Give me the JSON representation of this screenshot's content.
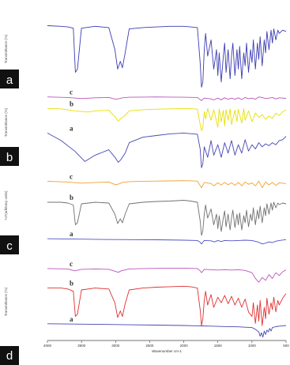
{
  "chart_data": [
    {
      "type": "line",
      "panel_label": "a",
      "ylabel": "Transmittance (%)",
      "x_axis": "reversed",
      "traces": [
        {
          "label": "",
          "color": "#3c3cb4",
          "x": [
            4000,
            3800,
            3700,
            3620,
            3590,
            3560,
            3500,
            3300,
            3100,
            3010,
            2970,
            2930,
            2900,
            2860,
            2800,
            2600,
            2400,
            2200,
            2000,
            1900,
            1800,
            1760,
            1740,
            1720,
            1700,
            1680,
            1650,
            1600,
            1560,
            1520,
            1500,
            1480,
            1450,
            1420,
            1400,
            1380,
            1350,
            1320,
            1300,
            1280,
            1250,
            1220,
            1200,
            1180,
            1150,
            1120,
            1100,
            1080,
            1050,
            1020,
            1000,
            980,
            950,
            920,
            900,
            880,
            850,
            820,
            800,
            780,
            750,
            720,
            700,
            680,
            650,
            620,
            600,
            550,
            500
          ],
          "y": [
            97,
            96,
            95,
            93,
            25,
            30,
            93,
            96,
            94,
            60,
            30,
            42,
            32,
            55,
            92,
            94,
            95,
            96,
            96,
            95,
            94,
            40,
            2,
            10,
            60,
            85,
            50,
            75,
            30,
            60,
            20,
            55,
            10,
            50,
            70,
            25,
            60,
            15,
            50,
            70,
            20,
            60,
            30,
            65,
            15,
            55,
            35,
            70,
            25,
            60,
            40,
            75,
            30,
            70,
            45,
            80,
            35,
            75,
            55,
            88,
            60,
            90,
            70,
            92,
            75,
            90,
            85,
            90,
            88
          ]
        }
      ]
    },
    {
      "type": "line",
      "panel_label": "b",
      "ylabel": "Transmittance (%)",
      "x_axis": "reversed",
      "traces": [
        {
          "label": "c",
          "color": "#bb55bb",
          "x": [
            4000,
            3700,
            3500,
            3300,
            3100,
            3000,
            2950,
            2900,
            2800,
            2600,
            2400,
            2200,
            2000,
            1800,
            1740,
            1720,
            1700,
            1600,
            1560,
            1500,
            1450,
            1400,
            1350,
            1300,
            1250,
            1200,
            1150,
            1100,
            1050,
            1000,
            950,
            900,
            850,
            800,
            750,
            700,
            650,
            600,
            500
          ],
          "y": [
            96,
            92,
            85,
            90,
            92,
            80,
            84,
            90,
            94,
            95,
            96,
            95,
            94,
            92,
            70,
            80,
            88,
            82,
            75,
            88,
            76,
            90,
            80,
            88,
            80,
            90,
            78,
            92,
            84,
            88,
            80,
            96,
            92,
            85,
            88,
            92,
            82,
            90,
            86
          ]
        },
        {
          "label": "b",
          "color": "#e8e000",
          "x": [
            4000,
            3800,
            3600,
            3400,
            3300,
            3100,
            3000,
            2960,
            2920,
            2860,
            2800,
            2600,
            2400,
            2200,
            2000,
            1900,
            1800,
            1760,
            1740,
            1720,
            1700,
            1680,
            1650,
            1600,
            1560,
            1500,
            1480,
            1450,
            1420,
            1400,
            1380,
            1350,
            1320,
            1300,
            1250,
            1220,
            1200,
            1150,
            1120,
            1100,
            1050,
            1000,
            950,
            900,
            850,
            800,
            750,
            700,
            650,
            600,
            550,
            500
          ],
          "y": [
            96,
            95,
            88,
            84,
            88,
            90,
            65,
            52,
            62,
            72,
            88,
            92,
            94,
            95,
            96,
            96,
            94,
            40,
            18,
            30,
            85,
            60,
            96,
            55,
            92,
            30,
            95,
            50,
            90,
            35,
            92,
            55,
            95,
            40,
            90,
            50,
            94,
            45,
            96,
            55,
            88,
            50,
            80,
            65,
            75,
            58,
            70,
            62,
            80,
            72,
            85,
            92
          ]
        },
        {
          "label": "a",
          "color": "#4646b4",
          "x": [
            4000,
            3800,
            3600,
            3450,
            3300,
            3100,
            3000,
            2960,
            2920,
            2860,
            2800,
            2600,
            2400,
            2200,
            2000,
            1800,
            1760,
            1740,
            1720,
            1700,
            1650,
            1600,
            1560,
            1500,
            1450,
            1400,
            1350,
            1300,
            1250,
            1200,
            1150,
            1100,
            1050,
            1000,
            950,
            900,
            850,
            800,
            750,
            700,
            650,
            600,
            550,
            500
          ],
          "y": [
            88,
            70,
            45,
            20,
            35,
            48,
            28,
            18,
            25,
            40,
            65,
            78,
            82,
            86,
            88,
            85,
            50,
            5,
            15,
            55,
            30,
            70,
            35,
            60,
            30,
            65,
            40,
            70,
            35,
            60,
            40,
            72,
            45,
            60,
            50,
            65,
            55,
            62,
            58,
            65,
            60,
            70,
            72,
            80
          ]
        }
      ]
    },
    {
      "type": "line",
      "panel_label": "c",
      "ylabel": "%T(arbitrary units)",
      "x_axis": "reversed",
      "traces": [
        {
          "label": "c",
          "color": "#f0a030",
          "x": [
            4000,
            3700,
            3500,
            3300,
            3100,
            3000,
            2950,
            2900,
            2800,
            2600,
            2400,
            2200,
            2000,
            1800,
            1740,
            1720,
            1700,
            1600,
            1560,
            1500,
            1450,
            1400,
            1350,
            1300,
            1250,
            1200,
            1150,
            1100,
            1050,
            1000,
            950,
            900,
            850,
            800,
            750,
            700,
            650,
            600,
            500
          ],
          "y": [
            94,
            90,
            84,
            88,
            90,
            76,
            80,
            88,
            92,
            94,
            95,
            96,
            97,
            95,
            60,
            72,
            88,
            82,
            70,
            86,
            74,
            88,
            76,
            86,
            72,
            88,
            70,
            90,
            78,
            86,
            70,
            95,
            60,
            90,
            75,
            88,
            72,
            86,
            82
          ]
        },
        {
          "label": "b",
          "color": "#707070",
          "x": [
            4000,
            3800,
            3700,
            3620,
            3590,
            3560,
            3500,
            3300,
            3100,
            3010,
            2970,
            2930,
            2900,
            2860,
            2800,
            2600,
            2400,
            2200,
            2000,
            1900,
            1800,
            1760,
            1740,
            1720,
            1700,
            1680,
            1650,
            1600,
            1560,
            1520,
            1500,
            1480,
            1450,
            1420,
            1400,
            1380,
            1350,
            1320,
            1300,
            1280,
            1250,
            1220,
            1200,
            1180,
            1150,
            1120,
            1100,
            1080,
            1050,
            1020,
            1000,
            980,
            950,
            920,
            900,
            880,
            850,
            820,
            800,
            780,
            750,
            720,
            700,
            680,
            650,
            620,
            600,
            550,
            500
          ],
          "y": [
            92,
            92,
            90,
            85,
            35,
            40,
            88,
            92,
            90,
            62,
            38,
            50,
            40,
            62,
            88,
            92,
            94,
            95,
            97,
            95,
            92,
            45,
            8,
            20,
            62,
            85,
            52,
            75,
            35,
            62,
            25,
            58,
            18,
            52,
            70,
            30,
            62,
            22,
            52,
            72,
            28,
            62,
            35,
            65,
            22,
            58,
            40,
            72,
            30,
            62,
            45,
            78,
            35,
            72,
            50,
            82,
            40,
            78,
            58,
            88,
            62,
            90,
            72,
            92,
            78,
            90,
            86,
            90,
            88
          ]
        },
        {
          "label": "a",
          "color": "#5050c8",
          "x": [
            4000,
            3600,
            3200,
            2800,
            2400,
            2000,
            1800,
            1760,
            1740,
            1720,
            1700,
            1600,
            1550,
            1500,
            1450,
            1400,
            1300,
            1200,
            1100,
            1000,
            900,
            850,
            800,
            750,
            700,
            650,
            600,
            500
          ],
          "y": [
            90,
            88,
            86,
            85,
            84,
            82,
            80,
            70,
            60,
            70,
            80,
            78,
            72,
            80,
            74,
            80,
            78,
            80,
            82,
            80,
            70,
            60,
            65,
            72,
            68,
            76,
            80,
            85
          ]
        }
      ]
    },
    {
      "type": "line",
      "panel_label": "d",
      "ylabel": "Transmittance (%)",
      "xlabel": "Wavenumber cm-1",
      "x_axis": "reversed",
      "xlim": [
        4000,
        500
      ],
      "xticks": [
        4000,
        3500,
        3000,
        2500,
        2000,
        1500,
        1000,
        500
      ],
      "traces": [
        {
          "label": "c",
          "color": "#bb55bb",
          "x": [
            4000,
            3700,
            3600,
            3500,
            3300,
            3100,
            3010,
            2960,
            2920,
            2800,
            2600,
            2400,
            2200,
            2000,
            1800,
            1760,
            1740,
            1720,
            1700,
            1600,
            1500,
            1400,
            1300,
            1200,
            1100,
            1000,
            950,
            900,
            850,
            800,
            750,
            700,
            650,
            600,
            550,
            500
          ],
          "y": [
            92,
            90,
            80,
            88,
            90,
            88,
            78,
            72,
            80,
            90,
            92,
            93,
            94,
            94,
            92,
            80,
            70,
            78,
            88,
            86,
            84,
            86,
            84,
            86,
            82,
            70,
            40,
            20,
            45,
            30,
            60,
            40,
            70,
            55,
            75,
            85
          ]
        },
        {
          "label": "b",
          "color": "#e03030",
          "x": [
            4000,
            3800,
            3700,
            3620,
            3590,
            3560,
            3500,
            3300,
            3100,
            3010,
            2970,
            2930,
            2900,
            2860,
            2800,
            2600,
            2400,
            2200,
            2000,
            1900,
            1800,
            1760,
            1740,
            1720,
            1700,
            1680,
            1650,
            1600,
            1560,
            1500,
            1450,
            1400,
            1350,
            1300,
            1250,
            1200,
            1150,
            1100,
            1050,
            1000,
            980,
            950,
            920,
            900,
            880,
            850,
            820,
            800,
            780,
            750,
            720,
            700,
            680,
            650,
            620,
            600,
            550,
            500
          ],
          "y": [
            92,
            92,
            90,
            85,
            30,
            35,
            88,
            92,
            90,
            60,
            28,
            42,
            30,
            58,
            88,
            92,
            94,
            95,
            96,
            95,
            92,
            45,
            10,
            25,
            65,
            85,
            55,
            78,
            50,
            72,
            60,
            76,
            58,
            74,
            55,
            70,
            50,
            68,
            40,
            30,
            60,
            15,
            55,
            20,
            65,
            10,
            50,
            25,
            70,
            35,
            60,
            45,
            72,
            40,
            65,
            55,
            70,
            80
          ]
        },
        {
          "label": "a",
          "color": "#4646b4",
          "x": [
            4000,
            3600,
            3200,
            2800,
            2400,
            2000,
            1800,
            1600,
            1400,
            1200,
            1100,
            1000,
            950,
            900,
            880,
            860,
            840,
            820,
            800,
            780,
            760,
            740,
            720,
            700,
            650,
            600,
            550,
            500
          ],
          "y": [
            92,
            90,
            88,
            86,
            84,
            82,
            80,
            78,
            76,
            74,
            72,
            70,
            60,
            45,
            20,
            40,
            15,
            50,
            30,
            55,
            45,
            65,
            50,
            70,
            75,
            78,
            80,
            82
          ]
        }
      ]
    }
  ]
}
